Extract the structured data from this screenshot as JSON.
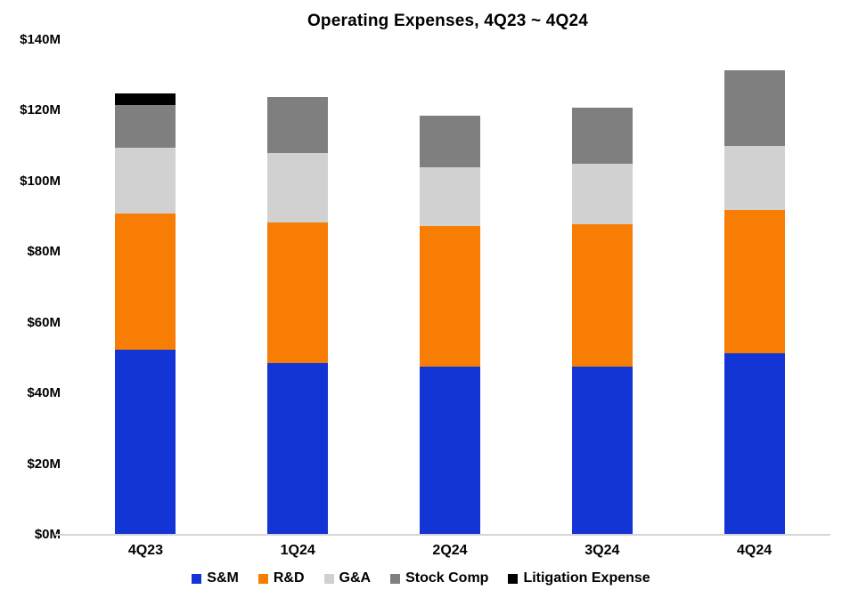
{
  "chart_data": {
    "type": "bar",
    "stacked": true,
    "title": "Operating Expenses, 4Q23 ~ 4Q24",
    "categories": [
      "4Q23",
      "1Q24",
      "2Q24",
      "3Q24",
      "4Q24"
    ],
    "series": [
      {
        "name": "S&M",
        "color": "#1435d6",
        "values": [
          52.5,
          48.5,
          47.5,
          47.5,
          51.5
        ]
      },
      {
        "name": "R&D",
        "color": "#f87d05",
        "values": [
          38.5,
          40.0,
          40.0,
          40.5,
          40.5
        ]
      },
      {
        "name": "G&A",
        "color": "#d1d1d1",
        "values": [
          18.5,
          19.5,
          16.5,
          17.0,
          18.0
        ]
      },
      {
        "name": "Stock Comp",
        "color": "#7f7f7f",
        "values": [
          12.0,
          16.0,
          14.5,
          16.0,
          21.5
        ]
      },
      {
        "name": "Litigation Expense",
        "color": "#000000",
        "values": [
          3.5,
          0,
          0,
          0,
          0
        ]
      }
    ],
    "totals": [
      125.0,
      124.0,
      118.5,
      121.0,
      131.5
    ],
    "ylabel": "",
    "xlabel": "",
    "ylim": [
      0,
      140
    ],
    "y_tick_labels": [
      "$140M",
      "$120M",
      "$100M",
      "$80M",
      "$60M",
      "$40M",
      "$20M",
      "$0M"
    ],
    "y_tick_values": [
      140,
      120,
      100,
      80,
      60,
      40,
      20,
      0
    ],
    "grid": false,
    "legend_position": "bottom"
  }
}
